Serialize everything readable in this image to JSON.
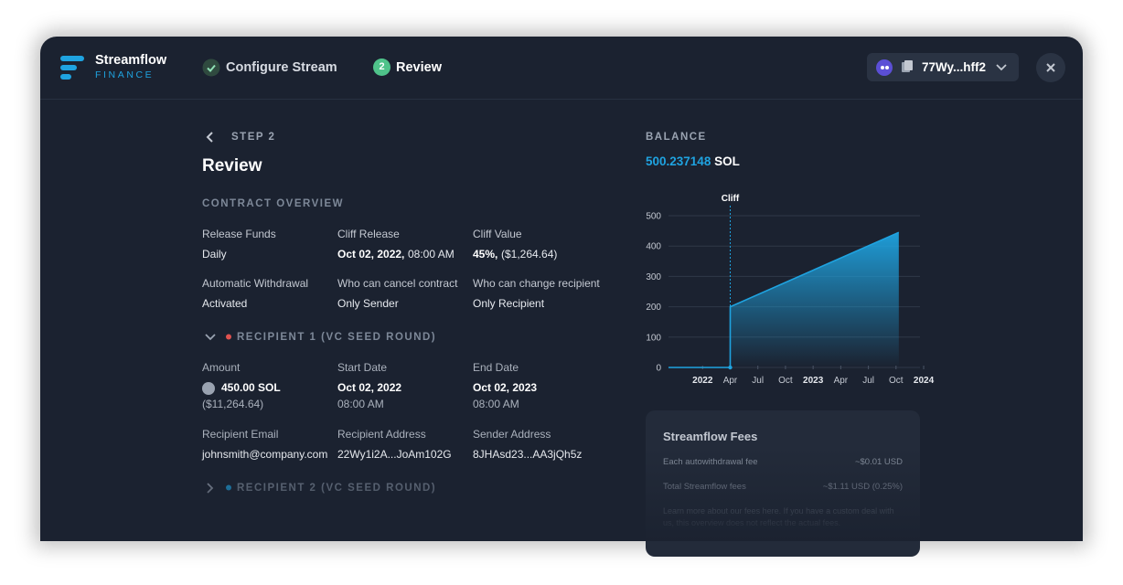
{
  "header": {
    "brand": "Streamflow",
    "brand_sub": "FINANCE",
    "steps": [
      {
        "label": "Configure Stream"
      },
      {
        "number": "2",
        "label": "Review"
      }
    ],
    "wallet": "77Wy...hff2"
  },
  "step": {
    "label": "STEP 2",
    "title": "Review"
  },
  "contract": {
    "title": "CONTRACT OVERVIEW",
    "fields": [
      {
        "label": "Release Funds",
        "value": "Daily"
      },
      {
        "label": "Cliff Release",
        "value": "Oct 02, 2022,",
        "extra": "08:00 AM"
      },
      {
        "label": "Cliff Value",
        "value": "45%,",
        "extra": "($1,264.64)"
      },
      {
        "label": "Automatic Withdrawal",
        "value": "Activated"
      },
      {
        "label": "Who can cancel contract",
        "value": "Only Sender"
      },
      {
        "label": "Who can change recipient",
        "value": "Only Recipient"
      }
    ]
  },
  "recipients": [
    {
      "title": "RECIPIENT 1 (VC SEED ROUND)",
      "fields": [
        {
          "label": "Amount",
          "value": "450.00 SOL",
          "extra": "($11,264.64)"
        },
        {
          "label": "Start Date",
          "value": "Oct 02, 2022",
          "extra": "08:00 AM"
        },
        {
          "label": "End Date",
          "value": "Oct 02, 2023",
          "extra": "08:00 AM"
        },
        {
          "label": "Recipient Email",
          "value": "johnsmith@company.com"
        },
        {
          "label": "Recipient Address",
          "value": "22Wy1i2A...JoAm102G"
        },
        {
          "label": "Sender Address",
          "value": "8JHAsd23...AA3jQh5z"
        }
      ]
    },
    {
      "title": "RECIPIENT 2 (VC SEED ROUND)"
    }
  ],
  "balance": {
    "label": "BALANCE",
    "amount": "500.237148",
    "unit": "SOL"
  },
  "chart_data": {
    "type": "area",
    "annotation": {
      "label": "Cliff",
      "x": 3
    },
    "x": [
      -3.7,
      3,
      3,
      21.3
    ],
    "series": [
      {
        "name": "Balance",
        "color": "#1fa3e0",
        "values": [
          0,
          0,
          200,
          445
        ]
      }
    ],
    "xlim": [
      -3.7,
      23.6
    ],
    "ylim": [
      0,
      500
    ],
    "yticks": [
      0,
      100,
      200,
      300,
      400,
      500
    ],
    "xticks": [
      {
        "value": 0,
        "label": "2022"
      },
      {
        "value": 3,
        "label": "Apr"
      },
      {
        "value": 6,
        "label": "Jul"
      },
      {
        "value": 9,
        "label": "Oct"
      },
      {
        "value": 12,
        "label": "2023"
      },
      {
        "value": 15,
        "label": "Apr"
      },
      {
        "value": 18,
        "label": "Jul"
      },
      {
        "value": 21,
        "label": "Oct"
      },
      {
        "value": 24,
        "label": "2024"
      }
    ],
    "grid": true
  },
  "fees": {
    "title": "Streamflow Fees",
    "rows": [
      {
        "label": "Each autowithdrawal fee",
        "value": "~$0.01 USD"
      },
      {
        "label": "Total Streamflow fees",
        "value": "~$1.11 USD (0.25%)"
      }
    ],
    "note": "Learn more about our fees here. If you have a custom deal with us, this overview does not reflect the actual fees."
  }
}
